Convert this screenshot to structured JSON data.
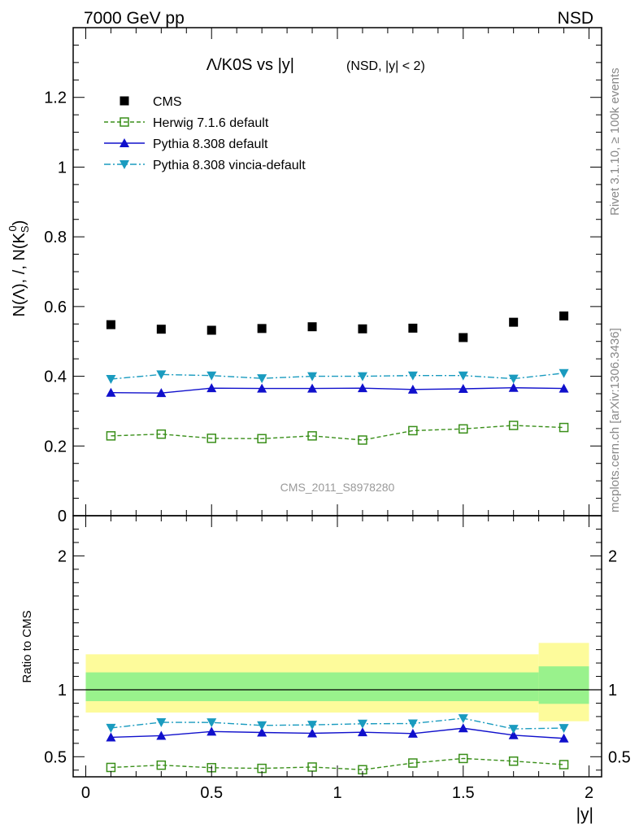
{
  "header": {
    "energy_label": "7000 GeV pp",
    "process_label": "NSD"
  },
  "side_labels": {
    "rivet": "Rivet 3.1.10, ≥ 100k events",
    "mcplots": "mcplots.cern.ch [arXiv:1306.3436]"
  },
  "chart_data": [
    {
      "type": "scatter",
      "panel": "main",
      "title": "Λ/K0S vs |y|",
      "subtitle": "(NSD, |y| < 2)",
      "ylabel": "N(Λ), /, N(K",
      "ylabel_sub": "S",
      "ylabel_sup": "0",
      "ylabel_tail": ")",
      "watermark": "CMS_2011_S8978280",
      "xlim": [
        -0.05,
        2.05
      ],
      "ylim": [
        0,
        1.4
      ],
      "yticks": [
        0,
        0.2,
        0.4,
        0.6,
        0.8,
        1,
        1.2
      ],
      "ytick_labels": [
        "0",
        "0.2",
        "0.4",
        "0.6",
        "0.8",
        "1",
        "1.2"
      ],
      "legend_position": "top-left",
      "x": [
        0.1,
        0.3,
        0.5,
        0.7,
        0.9,
        1.1,
        1.3,
        1.5,
        1.7,
        1.9
      ],
      "series": [
        {
          "name": "CMS",
          "color": "#000000",
          "marker": "square-filled",
          "line": "none",
          "values": [
            0.548,
            0.535,
            0.532,
            0.537,
            0.542,
            0.536,
            0.538,
            0.511,
            0.555,
            0.573
          ]
        },
        {
          "name": "Herwig 7.1.6 default",
          "color": "#3a8f1a",
          "marker": "square-open",
          "line": "dashed",
          "values": [
            0.229,
            0.234,
            0.222,
            0.221,
            0.229,
            0.217,
            0.244,
            0.249,
            0.259,
            0.253
          ]
        },
        {
          "name": "Pythia 8.308 default",
          "color": "#1010cc",
          "marker": "triangle-up",
          "line": "solid",
          "values": [
            0.353,
            0.352,
            0.366,
            0.365,
            0.365,
            0.366,
            0.362,
            0.364,
            0.367,
            0.365
          ]
        },
        {
          "name": "Pythia 8.308 vincia-default",
          "color": "#1a9bbf",
          "marker": "triangle-down",
          "line": "dashdot",
          "values": [
            0.392,
            0.405,
            0.402,
            0.394,
            0.4,
            0.4,
            0.402,
            0.402,
            0.393,
            0.409
          ]
        }
      ]
    },
    {
      "type": "scatter",
      "panel": "ratio",
      "ylabel": "Ratio to CMS",
      "xlabel": "|y|",
      "xlim": [
        -0.05,
        2.05
      ],
      "ylim": [
        0.35,
        2.3
      ],
      "yticks": [
        0.5,
        1,
        2
      ],
      "ytick_labels": [
        "0.5",
        "1",
        "2"
      ],
      "xticks": [
        0,
        0.5,
        1,
        1.5,
        2
      ],
      "xtick_labels": [
        "0",
        "0.5",
        "1",
        "1.5",
        "2"
      ],
      "reference_line": 1,
      "bands": [
        {
          "x_range": [
            0.0,
            1.8
          ],
          "inner": [
            0.915,
            1.13
          ],
          "outer": [
            0.83,
            1.265
          ]
        },
        {
          "x_range": [
            1.8,
            2.0
          ],
          "inner": [
            0.895,
            1.175
          ],
          "outer": [
            0.765,
            1.35
          ]
        }
      ],
      "band_colors": {
        "inner": "#99f28c",
        "outer": "#fdfb9b"
      },
      "x": [
        0.1,
        0.3,
        0.5,
        0.7,
        0.9,
        1.1,
        1.3,
        1.5,
        1.7,
        1.9
      ],
      "series": [
        {
          "name": "Herwig 7.1.6 default",
          "color": "#3a8f1a",
          "marker": "square-open",
          "line": "dashed",
          "values": [
            0.42,
            0.437,
            0.418,
            0.413,
            0.423,
            0.403,
            0.453,
            0.487,
            0.467,
            0.441
          ]
        },
        {
          "name": "Pythia 8.308 default",
          "color": "#1010cc",
          "marker": "triangle-up",
          "line": "solid",
          "values": [
            0.645,
            0.657,
            0.688,
            0.681,
            0.675,
            0.683,
            0.673,
            0.713,
            0.661,
            0.637
          ]
        },
        {
          "name": "Pythia 8.308 vincia-default",
          "color": "#1a9bbf",
          "marker": "triangle-down",
          "line": "dashdot",
          "values": [
            0.715,
            0.757,
            0.756,
            0.734,
            0.738,
            0.746,
            0.748,
            0.787,
            0.708,
            0.714
          ]
        }
      ]
    }
  ]
}
